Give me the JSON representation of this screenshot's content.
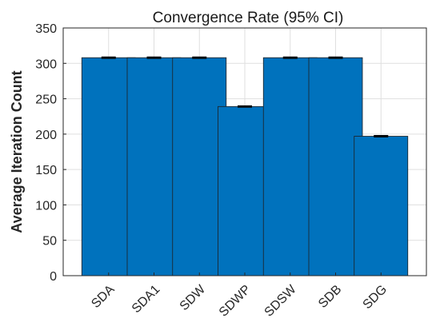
{
  "chart_data": {
    "type": "bar",
    "title": "Convergence Rate (95% CI)",
    "xlabel": "",
    "ylabel": "Average Iteration Count",
    "categories": [
      "SDA",
      "SDA1",
      "SDW",
      "SDWP",
      "SDSW",
      "SDB",
      "SDG"
    ],
    "values": [
      308,
      308,
      308,
      239,
      308,
      308,
      197
    ],
    "error": [
      0.8,
      0.8,
      0.8,
      0.8,
      0.8,
      0.8,
      0.8
    ],
    "ylim": [
      0,
      350
    ],
    "yticks": [
      0,
      50,
      100,
      150,
      200,
      250,
      300,
      350
    ],
    "grid": true,
    "bar_color": "#0072BD"
  }
}
